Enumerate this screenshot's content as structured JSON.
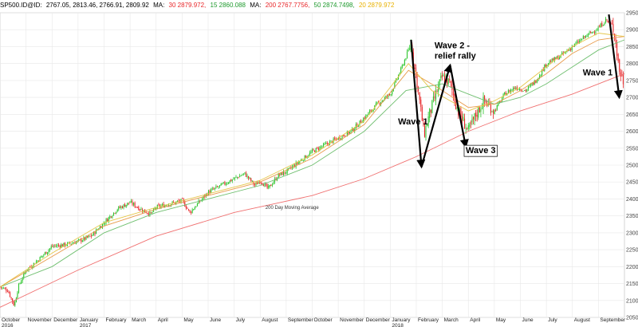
{
  "header": {
    "symbol": "SP500.ID@ID:",
    "ohlc": "2767.05, 2813.46, 2766.91, 2809.92",
    "ma_label_1": "MA:",
    "ma30": "30 2879.972,",
    "ma15": "15 2860.088",
    "ma_label_2": "MA:",
    "ma200": "200 2767.7756,",
    "ma50": "50 2874.7498,",
    "ma20": "20 2879.972"
  },
  "colors": {
    "up": "#2cc52c",
    "down": "#e8272a",
    "ma200": "#f07070",
    "ma50": "#6fbf6f",
    "ma30": "#e89a4a",
    "ma20": "#e6c64a",
    "grid": "#e8e8e8",
    "arrow": "#000000"
  },
  "chart_data": {
    "type": "candlestick",
    "ylim": [
      2050,
      2950
    ],
    "y_ticks": [
      2950,
      2900,
      2850,
      2800,
      2750,
      2700,
      2650,
      2600,
      2550,
      2500,
      2450,
      2400,
      2350,
      2300,
      2250,
      2200,
      2150,
      2100,
      2050
    ],
    "x_month_labels": [
      "October",
      "November",
      "December",
      "January",
      "February",
      "March",
      "April",
      "May",
      "June",
      "July",
      "August",
      "September",
      "October",
      "November",
      "December",
      "January",
      "February",
      "March",
      "April",
      "May",
      "June",
      "July",
      "August",
      "September"
    ],
    "x_year_labels": [
      {
        "label": "2016",
        "month_index": 0
      },
      {
        "label": "2017",
        "month_index": 3
      },
      {
        "label": "2018",
        "month_index": 15
      }
    ],
    "close_path": [
      [
        0,
        2140
      ],
      [
        0.3,
        2130
      ],
      [
        0.55,
        2085
      ],
      [
        0.7,
        2140
      ],
      [
        1,
        2190
      ],
      [
        1.4,
        2215
      ],
      [
        2,
        2260
      ],
      [
        2.5,
        2265
      ],
      [
        3,
        2275
      ],
      [
        3.5,
        2290
      ],
      [
        4,
        2330
      ],
      [
        4.5,
        2370
      ],
      [
        5,
        2390
      ],
      [
        5.4,
        2370
      ],
      [
        5.8,
        2355
      ],
      [
        6,
        2375
      ],
      [
        6.5,
        2385
      ],
      [
        7,
        2395
      ],
      [
        7.3,
        2360
      ],
      [
        7.7,
        2395
      ],
      [
        8,
        2420
      ],
      [
        8.5,
        2440
      ],
      [
        9,
        2460
      ],
      [
        9.4,
        2475
      ],
      [
        9.8,
        2440
      ],
      [
        10,
        2455
      ],
      [
        10.3,
        2430
      ],
      [
        10.7,
        2470
      ],
      [
        11,
        2480
      ],
      [
        11.5,
        2510
      ],
      [
        12,
        2540
      ],
      [
        12.5,
        2560
      ],
      [
        13,
        2580
      ],
      [
        13.5,
        2600
      ],
      [
        14,
        2640
      ],
      [
        14.5,
        2680
      ],
      [
        15,
        2710
      ],
      [
        15.4,
        2780
      ],
      [
        15.8,
        2860
      ],
      [
        16,
        2760
      ],
      [
        16.3,
        2590
      ],
      [
        16.5,
        2650
      ],
      [
        16.8,
        2720
      ],
      [
        17,
        2760
      ],
      [
        17.3,
        2740
      ],
      [
        17.6,
        2660
      ],
      [
        18,
        2600
      ],
      [
        18.3,
        2650
      ],
      [
        18.6,
        2690
      ],
      [
        19,
        2660
      ],
      [
        19.4,
        2710
      ],
      [
        19.8,
        2730
      ],
      [
        20.2,
        2720
      ],
      [
        20.6,
        2750
      ],
      [
        21,
        2800
      ],
      [
        21.5,
        2820
      ],
      [
        22,
        2850
      ],
      [
        22.5,
        2880
      ],
      [
        23,
        2905
      ],
      [
        23.3,
        2930
      ],
      [
        23.6,
        2900
      ],
      [
        23.8,
        2780
      ],
      [
        24,
        2740
      ],
      [
        24.2,
        2800
      ]
    ],
    "ma_paths": {
      "ma200": [
        [
          0,
          2080
        ],
        [
          3,
          2190
        ],
        [
          6,
          2290
        ],
        [
          9,
          2360
        ],
        [
          12,
          2410
        ],
        [
          14,
          2460
        ],
        [
          16,
          2525
        ],
        [
          18,
          2600
        ],
        [
          20,
          2660
        ],
        [
          22,
          2710
        ],
        [
          24,
          2770
        ]
      ],
      "ma50": [
        [
          0,
          2140
        ],
        [
          2,
          2200
        ],
        [
          4,
          2300
        ],
        [
          6,
          2360
        ],
        [
          8,
          2400
        ],
        [
          10,
          2440
        ],
        [
          12,
          2500
        ],
        [
          14,
          2600
        ],
        [
          15.6,
          2720
        ],
        [
          17,
          2740
        ],
        [
          18,
          2710
        ],
        [
          19,
          2680
        ],
        [
          20,
          2700
        ],
        [
          21,
          2740
        ],
        [
          22,
          2790
        ],
        [
          23,
          2840
        ],
        [
          24,
          2870
        ]
      ],
      "ma30": [
        [
          0,
          2140
        ],
        [
          2,
          2230
        ],
        [
          4,
          2320
        ],
        [
          6,
          2370
        ],
        [
          8,
          2410
        ],
        [
          10,
          2450
        ],
        [
          12,
          2520
        ],
        [
          14,
          2620
        ],
        [
          15.7,
          2780
        ],
        [
          16.8,
          2730
        ],
        [
          18,
          2670
        ],
        [
          19,
          2680
        ],
        [
          20,
          2720
        ],
        [
          21,
          2770
        ],
        [
          22,
          2830
        ],
        [
          23,
          2870
        ],
        [
          24,
          2880
        ]
      ],
      "ma20": [
        [
          0,
          2140
        ],
        [
          2,
          2240
        ],
        [
          4,
          2330
        ],
        [
          6,
          2375
        ],
        [
          8,
          2415
        ],
        [
          10,
          2455
        ],
        [
          12,
          2530
        ],
        [
          14,
          2630
        ],
        [
          15.7,
          2800
        ],
        [
          16.6,
          2720
        ],
        [
          18,
          2660
        ],
        [
          19,
          2690
        ],
        [
          20,
          2730
        ],
        [
          21,
          2790
        ],
        [
          22,
          2850
        ],
        [
          23,
          2890
        ],
        [
          24,
          2880
        ]
      ]
    },
    "annotations": [
      {
        "id": "wave1-a",
        "text": "Wave 1",
        "x": 15.3,
        "y": 2620
      },
      {
        "id": "wave2-l1",
        "text": "Wave 2 -",
        "x": 16.7,
        "y": 2845
      },
      {
        "id": "wave2-l2",
        "text": "relief rally",
        "x": 16.7,
        "y": 2815
      },
      {
        "id": "wave3",
        "text": "Wave 3",
        "x": 17.9,
        "y": 2535
      },
      {
        "id": "wave1-b",
        "text": "Wave 1",
        "x": 22.4,
        "y": 2765
      },
      {
        "id": "ma-label",
        "text": "200 Day Moving Average",
        "x": 10.2,
        "y": 2370
      }
    ],
    "arrows": [
      [
        [
          15.8,
          2870
        ],
        [
          16.2,
          2495
        ]
      ],
      [
        [
          16.2,
          2495
        ],
        [
          17.3,
          2795
        ]
      ],
      [
        [
          17.3,
          2795
        ],
        [
          17.9,
          2555
        ]
      ],
      [
        [
          23.4,
          2945
        ],
        [
          23.8,
          2700
        ]
      ]
    ]
  }
}
